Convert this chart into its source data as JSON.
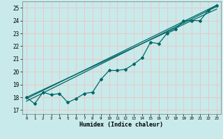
{
  "xlabel": "Humidex (Indice chaleur)",
  "ylabel": "",
  "background_color": "#c8eaea",
  "grid_color": "#e8c8c8",
  "line_color": "#006868",
  "xlim": [
    -0.5,
    23.5
  ],
  "ylim": [
    16.7,
    25.5
  ],
  "yticks": [
    17,
    18,
    19,
    20,
    21,
    22,
    23,
    24,
    25
  ],
  "xticks": [
    0,
    1,
    2,
    3,
    4,
    5,
    6,
    7,
    8,
    9,
    10,
    11,
    12,
    13,
    14,
    15,
    16,
    17,
    18,
    19,
    20,
    21,
    22,
    23
  ],
  "data_x": [
    0,
    1,
    2,
    3,
    4,
    5,
    6,
    7,
    8,
    9,
    10,
    11,
    12,
    13,
    14,
    15,
    16,
    17,
    18,
    19,
    20,
    21,
    22,
    23
  ],
  "data_y": [
    18.0,
    17.5,
    18.4,
    18.2,
    18.3,
    17.6,
    17.9,
    18.3,
    18.4,
    19.4,
    20.1,
    20.1,
    20.2,
    20.6,
    21.1,
    22.3,
    22.2,
    23.0,
    23.3,
    24.0,
    24.0,
    24.0,
    24.8,
    25.2
  ],
  "line1_x": [
    0,
    23
  ],
  "line1_y": [
    17.9,
    25.2
  ],
  "line2_x": [
    0,
    23
  ],
  "line2_y": [
    18.0,
    24.9
  ],
  "line3_x": [
    0,
    23
  ],
  "line3_y": [
    17.7,
    25.1
  ]
}
